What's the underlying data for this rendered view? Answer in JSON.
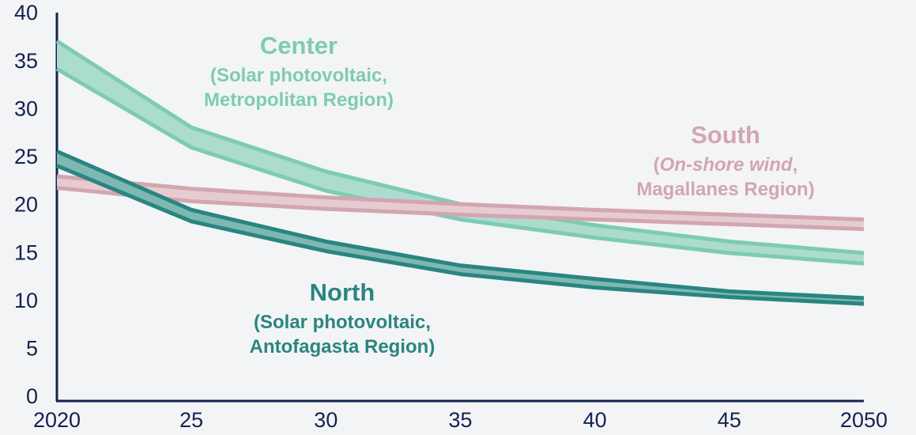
{
  "chart_data": {
    "type": "band",
    "x": [
      2020,
      2025,
      2030,
      2035,
      2040,
      2045,
      2050
    ],
    "xlim": [
      2020,
      2050
    ],
    "xticks": [
      2020,
      {
        "value": 2025,
        "label": "25"
      },
      {
        "value": 2030,
        "label": "30"
      },
      {
        "value": 2035,
        "label": "35"
      },
      {
        "value": 2040,
        "label": "40"
      },
      {
        "value": 2045,
        "label": "45"
      },
      2050
    ],
    "ylim": [
      0,
      40
    ],
    "yticks": [
      0,
      5,
      10,
      15,
      20,
      25,
      30,
      35,
      40
    ],
    "grid": false,
    "series": [
      {
        "name": "Center",
        "color": "#7ecbb3",
        "fill": "#acdccd",
        "label_lines": [
          [
            "(Solar photovoltaic,"
          ],
          [
            "Metropolitan Region)"
          ]
        ],
        "high": [
          37.2,
          28.2,
          23.6,
          20.2,
          18.0,
          16.3,
          15.1
        ],
        "low": [
          34.3,
          26.1,
          21.6,
          18.6,
          16.7,
          15.1,
          14.0
        ]
      },
      {
        "name": "South",
        "color": "#d2a6b0",
        "fill": "#e6ccd1",
        "label_lines": [
          [
            "(",
            {
              "text": "On-shore wind",
              "italic": true
            },
            ","
          ],
          [
            "Magallanes Region)"
          ]
        ],
        "high": [
          23.1,
          21.8,
          20.9,
          20.2,
          19.6,
          19.1,
          18.6
        ],
        "low": [
          21.9,
          20.5,
          19.7,
          19.1,
          18.6,
          18.1,
          17.6
        ]
      },
      {
        "name": "North",
        "color": "#2a8580",
        "fill": "#7db8b3",
        "label_lines": [
          [
            "(Solar photovoltaic,"
          ],
          [
            "Antofagasta Region)"
          ]
        ],
        "high": [
          25.7,
          19.6,
          16.3,
          13.8,
          12.4,
          11.1,
          10.4
        ],
        "low": [
          24.2,
          18.4,
          15.3,
          12.9,
          11.5,
          10.5,
          9.8
        ]
      }
    ]
  }
}
